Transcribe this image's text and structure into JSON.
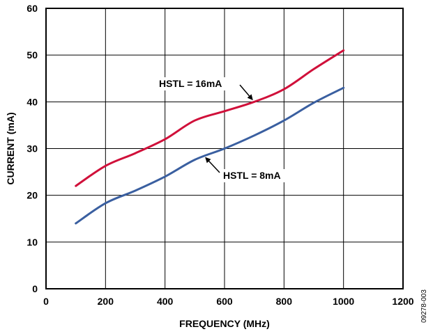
{
  "chart_data": {
    "type": "line",
    "xlabel": "FREQUENCY (MHz)",
    "ylabel": "CURRENT (mA)",
    "xlim": [
      0,
      1200
    ],
    "ylim": [
      0,
      60
    ],
    "xticks": [
      0,
      200,
      400,
      600,
      800,
      1000,
      1200
    ],
    "yticks": [
      0,
      10,
      20,
      30,
      40,
      50,
      60
    ],
    "grid": true,
    "series": [
      {
        "name": "HSTL = 16mA",
        "color": "#d0103a",
        "x": [
          100,
          200,
          300,
          400,
          500,
          600,
          700,
          800,
          900,
          1000
        ],
        "y": [
          22,
          26.3,
          29,
          32,
          36,
          38,
          40,
          42.7,
          47,
          51
        ]
      },
      {
        "name": "HSTL = 8mA",
        "color": "#3a5fa0",
        "x": [
          100,
          200,
          300,
          400,
          500,
          600,
          700,
          800,
          900,
          1000
        ],
        "y": [
          14,
          18.3,
          21,
          24,
          27.6,
          30,
          32.8,
          36,
          39.8,
          43
        ]
      }
    ],
    "annotations": [
      {
        "text": "HSTL = 16mA",
        "series": 0,
        "points_to": [
          700,
          40
        ]
      },
      {
        "text": "HSTL = 8mA",
        "series": 1,
        "points_to": [
          530,
          28.5
        ]
      }
    ],
    "figure_id": "09278-003"
  }
}
